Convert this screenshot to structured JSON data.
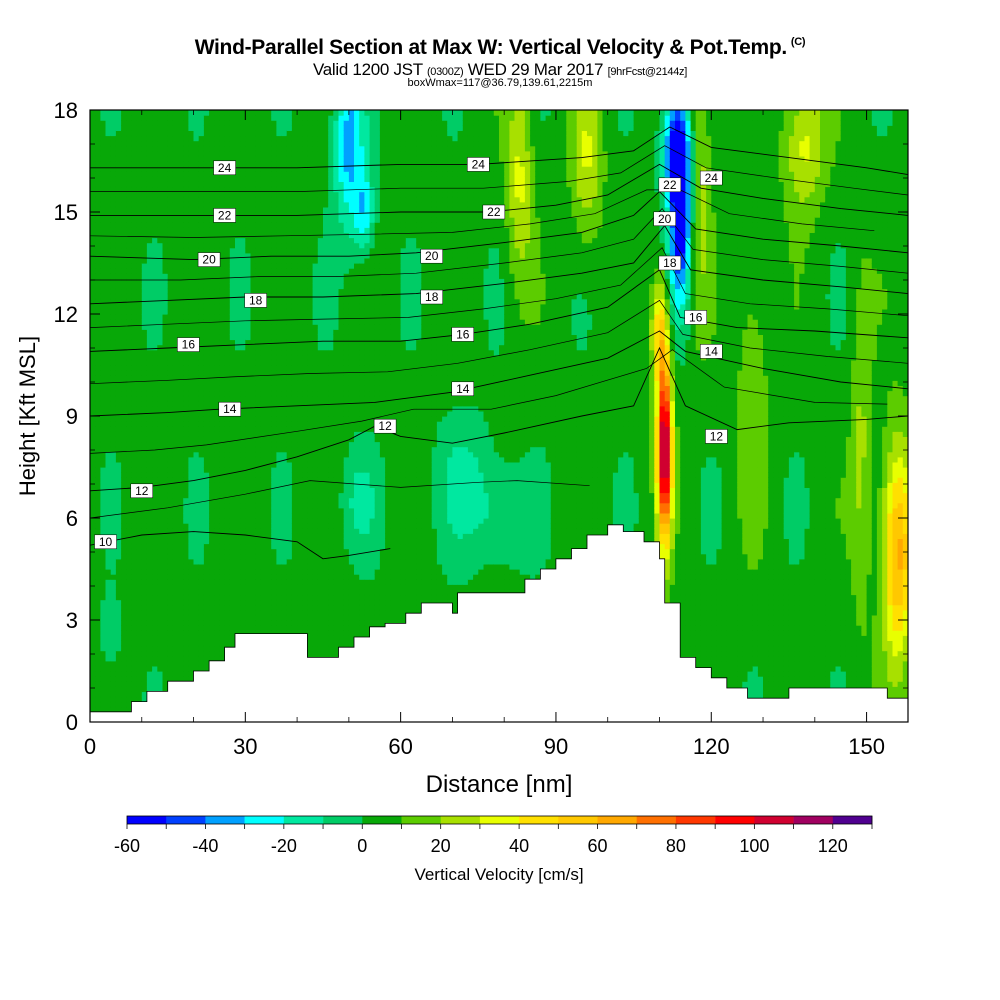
{
  "header": {
    "title": "Wind-Parallel Section at Max W: Vertical Velocity & Pot.Temp.",
    "title_mark": "(C)",
    "valid_prefix": "Valid 1200 JST",
    "valid_utc": "(0300Z)",
    "valid_date": "WED 29 Mar 2017",
    "forecast": "[9hrFcst@2144z]",
    "box_line": "boxWmax=117@36.79,139.61,2215m"
  },
  "chart_data": {
    "type": "heatmap",
    "xlabel": "Distance [nm]",
    "ylabel": "Height [Kft MSL]",
    "xlim": [
      0,
      158
    ],
    "ylim": [
      0,
      18
    ],
    "x_ticks": [
      0,
      30,
      60,
      90,
      120,
      150
    ],
    "y_ticks": [
      0,
      3,
      6,
      9,
      12,
      15,
      18
    ],
    "colorbar": {
      "label": "Vertical Velocity [cm/s]",
      "levels": [
        -60,
        -50,
        -40,
        -30,
        -20,
        -10,
        0,
        10,
        20,
        30,
        40,
        50,
        60,
        70,
        80,
        90,
        100,
        110,
        120,
        130
      ],
      "tick_labels": [
        -60,
        -40,
        -20,
        0,
        20,
        40,
        60,
        80,
        100,
        120
      ],
      "colors": [
        "#0000ff",
        "#0040ff",
        "#00a0ff",
        "#00ffff",
        "#00e8a0",
        "#00cc66",
        "#08a808",
        "#5ccc00",
        "#a8e000",
        "#e8ff00",
        "#ffe000",
        "#ffc800",
        "#ffa800",
        "#ff7000",
        "#ff3800",
        "#ff0000",
        "#d00030",
        "#a00060",
        "#500090"
      ]
    },
    "terrain_profile": [
      [
        0,
        0.3
      ],
      [
        8,
        0.3
      ],
      [
        8,
        0.6
      ],
      [
        11,
        0.6
      ],
      [
        11,
        0.9
      ],
      [
        15,
        0.9
      ],
      [
        15,
        1.2
      ],
      [
        20,
        1.2
      ],
      [
        20,
        1.5
      ],
      [
        23,
        1.5
      ],
      [
        23,
        1.8
      ],
      [
        26,
        1.8
      ],
      [
        26,
        2.2
      ],
      [
        28,
        2.2
      ],
      [
        28,
        2.6
      ],
      [
        33,
        2.6
      ],
      [
        33,
        2.6
      ],
      [
        42,
        2.6
      ],
      [
        42,
        1.9
      ],
      [
        48,
        1.9
      ],
      [
        48,
        2.2
      ],
      [
        51,
        2.2
      ],
      [
        51,
        2.5
      ],
      [
        54,
        2.5
      ],
      [
        54,
        2.8
      ],
      [
        57,
        2.8
      ],
      [
        57,
        2.9
      ],
      [
        61,
        2.9
      ],
      [
        61,
        3.2
      ],
      [
        64,
        3.2
      ],
      [
        64,
        3.5
      ],
      [
        70,
        3.5
      ],
      [
        70,
        3.2
      ],
      [
        71,
        3.2
      ],
      [
        71,
        3.8
      ],
      [
        75,
        3.8
      ],
      [
        75,
        3.8
      ],
      [
        84,
        3.8
      ],
      [
        84,
        4.2
      ],
      [
        87,
        4.2
      ],
      [
        87,
        4.5
      ],
      [
        90,
        4.5
      ],
      [
        90,
        4.8
      ],
      [
        93,
        4.8
      ],
      [
        93,
        5.1
      ],
      [
        96,
        5.1
      ],
      [
        96,
        5.5
      ],
      [
        100,
        5.5
      ],
      [
        100,
        5.8
      ],
      [
        103,
        5.8
      ],
      [
        103,
        5.6
      ],
      [
        107,
        5.6
      ],
      [
        107,
        5.3
      ],
      [
        110,
        5.3
      ],
      [
        110,
        4.8
      ],
      [
        111,
        4.8
      ],
      [
        111,
        3.5
      ],
      [
        114,
        3.5
      ],
      [
        114,
        1.9
      ],
      [
        117,
        1.9
      ],
      [
        117,
        1.6
      ],
      [
        120,
        1.6
      ],
      [
        120,
        1.3
      ],
      [
        123,
        1.3
      ],
      [
        123,
        1.0
      ],
      [
        127,
        1.0
      ],
      [
        127,
        0.7
      ],
      [
        135,
        0.7
      ],
      [
        135,
        1.0
      ],
      [
        146,
        1.0
      ],
      [
        146,
        1.0
      ],
      [
        154,
        1.0
      ],
      [
        154,
        0.7
      ],
      [
        158,
        0.7
      ]
    ],
    "isentropes": [
      {
        "value": 10,
        "points": [
          [
            0,
            5.2
          ],
          [
            10,
            5.5
          ],
          [
            20,
            5.6
          ],
          [
            30,
            5.5
          ],
          [
            40,
            5.3
          ],
          [
            45,
            4.8
          ],
          [
            50,
            4.9
          ],
          [
            58,
            5.1
          ]
        ]
      },
      {
        "value": 12,
        "points": [
          [
            0,
            6.8
          ],
          [
            10,
            6.9
          ],
          [
            20,
            7.1
          ],
          [
            30,
            7.4
          ],
          [
            40,
            7.8
          ],
          [
            50,
            8.3
          ],
          [
            55,
            8.7
          ],
          [
            60,
            8.4
          ],
          [
            70,
            8.2
          ],
          [
            80,
            8.5
          ],
          [
            95,
            9.0
          ],
          [
            105,
            9.3
          ],
          [
            110,
            11.0
          ],
          [
            115,
            9.3
          ],
          [
            125,
            8.6
          ],
          [
            135,
            8.8
          ],
          [
            150,
            8.9
          ],
          [
            158,
            9.0
          ]
        ]
      },
      {
        "value": 14,
        "points": [
          [
            0,
            9.0
          ],
          [
            15,
            9.1
          ],
          [
            25,
            9.2
          ],
          [
            40,
            9.3
          ],
          [
            55,
            9.4
          ],
          [
            70,
            9.7
          ],
          [
            85,
            10.2
          ],
          [
            100,
            10.7
          ],
          [
            110,
            11.5
          ],
          [
            115,
            10.9
          ],
          [
            130,
            10.4
          ],
          [
            145,
            10.0
          ],
          [
            158,
            9.8
          ]
        ]
      },
      {
        "value": 16,
        "points": [
          [
            0,
            10.9
          ],
          [
            15,
            11.0
          ],
          [
            30,
            11.1
          ],
          [
            45,
            11.2
          ],
          [
            60,
            11.2
          ],
          [
            72,
            11.4
          ],
          [
            85,
            11.7
          ],
          [
            100,
            12.2
          ],
          [
            110,
            13.3
          ],
          [
            114,
            11.9
          ],
          [
            125,
            11.6
          ],
          [
            140,
            11.5
          ],
          [
            158,
            11.3
          ]
        ]
      },
      {
        "value": 18,
        "points": [
          [
            0,
            12.3
          ],
          [
            15,
            12.4
          ],
          [
            30,
            12.5
          ],
          [
            45,
            12.5
          ],
          [
            63,
            12.6
          ],
          [
            80,
            12.9
          ],
          [
            95,
            13.2
          ],
          [
            105,
            13.5
          ],
          [
            111,
            14.6
          ],
          [
            116,
            13.3
          ],
          [
            130,
            13.0
          ],
          [
            145,
            12.8
          ],
          [
            158,
            12.6
          ]
        ]
      },
      {
        "value": 20,
        "points": [
          [
            0,
            13.7
          ],
          [
            20,
            13.6
          ],
          [
            35,
            13.7
          ],
          [
            50,
            13.7
          ],
          [
            63,
            13.8
          ],
          [
            80,
            14.1
          ],
          [
            95,
            14.4
          ],
          [
            105,
            14.9
          ],
          [
            110,
            15.6
          ],
          [
            117,
            14.5
          ],
          [
            130,
            14.2
          ],
          [
            145,
            14.0
          ],
          [
            158,
            13.8
          ]
        ]
      },
      {
        "value": 22,
        "points": [
          [
            0,
            14.9
          ],
          [
            20,
            14.9
          ],
          [
            40,
            14.9
          ],
          [
            60,
            15.0
          ],
          [
            77,
            15.0
          ],
          [
            90,
            15.2
          ],
          [
            100,
            15.5
          ],
          [
            110,
            16.4
          ],
          [
            118,
            15.7
          ],
          [
            130,
            15.4
          ],
          [
            145,
            15.1
          ],
          [
            158,
            14.9
          ]
        ]
      },
      {
        "value": 24,
        "points": [
          [
            0,
            16.3
          ],
          [
            20,
            16.3
          ],
          [
            40,
            16.3
          ],
          [
            60,
            16.4
          ],
          [
            75,
            16.4
          ],
          [
            95,
            16.6
          ],
          [
            105,
            16.8
          ],
          [
            112,
            17.5
          ],
          [
            120,
            16.9
          ],
          [
            135,
            16.6
          ],
          [
            150,
            16.3
          ],
          [
            158,
            16.1
          ]
        ]
      }
    ],
    "contour_labels": [
      {
        "value": "24",
        "x": 26,
        "y": 16.3
      },
      {
        "value": "24",
        "x": 75,
        "y": 16.4
      },
      {
        "value": "24",
        "x": 120,
        "y": 16.0
      },
      {
        "value": "22",
        "x": 26,
        "y": 14.9
      },
      {
        "value": "22",
        "x": 78,
        "y": 15.0
      },
      {
        "value": "22",
        "x": 112,
        "y": 15.8
      },
      {
        "value": "20",
        "x": 23,
        "y": 13.6
      },
      {
        "value": "20",
        "x": 66,
        "y": 13.7
      },
      {
        "value": "20",
        "x": 111,
        "y": 14.8
      },
      {
        "value": "18",
        "x": 32,
        "y": 12.4
      },
      {
        "value": "18",
        "x": 66,
        "y": 12.5
      },
      {
        "value": "18",
        "x": 112,
        "y": 13.5
      },
      {
        "value": "16",
        "x": 19,
        "y": 11.1
      },
      {
        "value": "16",
        "x": 72,
        "y": 11.4
      },
      {
        "value": "16",
        "x": 117,
        "y": 11.9
      },
      {
        "value": "14",
        "x": 27,
        "y": 9.2
      },
      {
        "value": "14",
        "x": 72,
        "y": 9.8
      },
      {
        "value": "14",
        "x": 120,
        "y": 10.9
      },
      {
        "value": "12",
        "x": 10,
        "y": 6.8
      },
      {
        "value": "12",
        "x": 57,
        "y": 8.7
      },
      {
        "value": "12",
        "x": 121,
        "y": 8.4
      },
      {
        "value": "10",
        "x": 3,
        "y": 5.3
      }
    ],
    "velocity_features": [
      {
        "desc": "updraft core",
        "x": 111,
        "y": 8.0,
        "value": 117
      },
      {
        "desc": "downdraft core",
        "x": 114,
        "y": 15.0,
        "value": -55
      }
    ]
  }
}
